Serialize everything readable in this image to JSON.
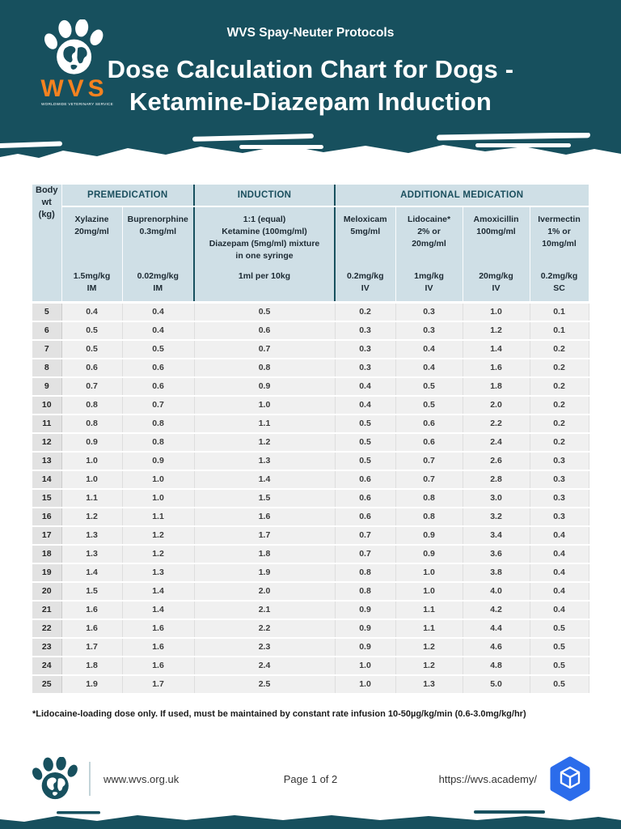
{
  "header": {
    "protocol_label": "WVS Spay-Neuter Protocols",
    "title_line1": "Dose Calculation Chart for Dogs -",
    "title_line2": "Ketamine-Diazepam Induction",
    "logo": {
      "acronym": "WVS",
      "subtext": "WORLDWIDE VETERINARY SERVICE"
    }
  },
  "table": {
    "group_headers": [
      "PREMEDICATION",
      "INDUCTION",
      "ADDITIONAL MEDICATION"
    ],
    "body_header": [
      "Body",
      "wt",
      "(kg)"
    ],
    "columns": [
      {
        "id": "xylazine",
        "top": [
          "Xylazine",
          "20mg/ml"
        ],
        "bottom": [
          "1.5mg/kg",
          "IM"
        ],
        "dark": false
      },
      {
        "id": "buprenorphine",
        "top": [
          "Buprenorphine",
          "0.3mg/ml"
        ],
        "bottom": [
          "0.02mg/kg",
          "IM"
        ],
        "dark": false
      },
      {
        "id": "induction-mixture",
        "top": [
          "1:1 (equal)",
          "Ketamine (100mg/ml)",
          "Diazepam (5mg/ml) mixture",
          "in one syringe"
        ],
        "bottom": [
          "1ml per 10kg"
        ],
        "dark": true
      },
      {
        "id": "meloxicam",
        "top": [
          "Meloxicam",
          "5mg/ml"
        ],
        "bottom": [
          "0.2mg/kg",
          "IV"
        ],
        "dark": false
      },
      {
        "id": "lidocaine",
        "top": [
          "Lidocaine*",
          "2% or",
          "20mg/ml"
        ],
        "bottom": [
          "1mg/kg",
          "IV"
        ],
        "dark": false
      },
      {
        "id": "amoxicillin",
        "top": [
          "Amoxicillin",
          "100mg/ml"
        ],
        "bottom": [
          "20mg/kg",
          "IV"
        ],
        "dark": false
      },
      {
        "id": "ivermectin",
        "top": [
          "Ivermectin",
          "1% or",
          "10mg/ml"
        ],
        "bottom": [
          "0.2mg/kg",
          "SC"
        ],
        "dark": false
      }
    ],
    "rows": [
      [
        "5",
        "0.4",
        "0.4",
        "0.5",
        "0.2",
        "0.3",
        "1.0",
        "0.1"
      ],
      [
        "6",
        "0.5",
        "0.4",
        "0.6",
        "0.3",
        "0.3",
        "1.2",
        "0.1"
      ],
      [
        "7",
        "0.5",
        "0.5",
        "0.7",
        "0.3",
        "0.4",
        "1.4",
        "0.2"
      ],
      [
        "8",
        "0.6",
        "0.6",
        "0.8",
        "0.3",
        "0.4",
        "1.6",
        "0.2"
      ],
      [
        "9",
        "0.7",
        "0.6",
        "0.9",
        "0.4",
        "0.5",
        "1.8",
        "0.2"
      ],
      [
        "10",
        "0.8",
        "0.7",
        "1.0",
        "0.4",
        "0.5",
        "2.0",
        "0.2"
      ],
      [
        "11",
        "0.8",
        "0.8",
        "1.1",
        "0.5",
        "0.6",
        "2.2",
        "0.2"
      ],
      [
        "12",
        "0.9",
        "0.8",
        "1.2",
        "0.5",
        "0.6",
        "2.4",
        "0.2"
      ],
      [
        "13",
        "1.0",
        "0.9",
        "1.3",
        "0.5",
        "0.7",
        "2.6",
        "0.3"
      ],
      [
        "14",
        "1.0",
        "1.0",
        "1.4",
        "0.6",
        "0.7",
        "2.8",
        "0.3"
      ],
      [
        "15",
        "1.1",
        "1.0",
        "1.5",
        "0.6",
        "0.8",
        "3.0",
        "0.3"
      ],
      [
        "16",
        "1.2",
        "1.1",
        "1.6",
        "0.6",
        "0.8",
        "3.2",
        "0.3"
      ],
      [
        "17",
        "1.3",
        "1.2",
        "1.7",
        "0.7",
        "0.9",
        "3.4",
        "0.4"
      ],
      [
        "18",
        "1.3",
        "1.2",
        "1.8",
        "0.7",
        "0.9",
        "3.6",
        "0.4"
      ],
      [
        "19",
        "1.4",
        "1.3",
        "1.9",
        "0.8",
        "1.0",
        "3.8",
        "0.4"
      ],
      [
        "20",
        "1.5",
        "1.4",
        "2.0",
        "0.8",
        "1.0",
        "4.0",
        "0.4"
      ],
      [
        "21",
        "1.6",
        "1.4",
        "2.1",
        "0.9",
        "1.1",
        "4.2",
        "0.4"
      ],
      [
        "22",
        "1.6",
        "1.6",
        "2.2",
        "0.9",
        "1.1",
        "4.4",
        "0.5"
      ],
      [
        "23",
        "1.7",
        "1.6",
        "2.3",
        "0.9",
        "1.2",
        "4.6",
        "0.5"
      ],
      [
        "24",
        "1.8",
        "1.6",
        "2.4",
        "1.0",
        "1.2",
        "4.8",
        "0.5"
      ],
      [
        "25",
        "1.9",
        "1.7",
        "2.5",
        "1.0",
        "1.3",
        "5.0",
        "0.5"
      ]
    ]
  },
  "footnote": "*Lidocaine-loading dose only. If used, must be maintained by constant rate infusion 10-50µg/kg/min (0.6-3.0mg/kg/hr)",
  "footer": {
    "website": "www.wvs.org.uk",
    "page_label": "Page 1 of 2",
    "academy_url": "https://wvs.academy/"
  },
  "icons": {
    "paw_logo": "paw-globe-icon",
    "academy_logo": "hexagon-cube-icon"
  },
  "colors": {
    "teal": "#17505e",
    "orange": "#f58220",
    "header_blue": "#cfdfe6",
    "row_gray": "#f0f0f0",
    "body_col_gray": "#e2e2e2",
    "academy_blue": "#2b6ceb"
  }
}
